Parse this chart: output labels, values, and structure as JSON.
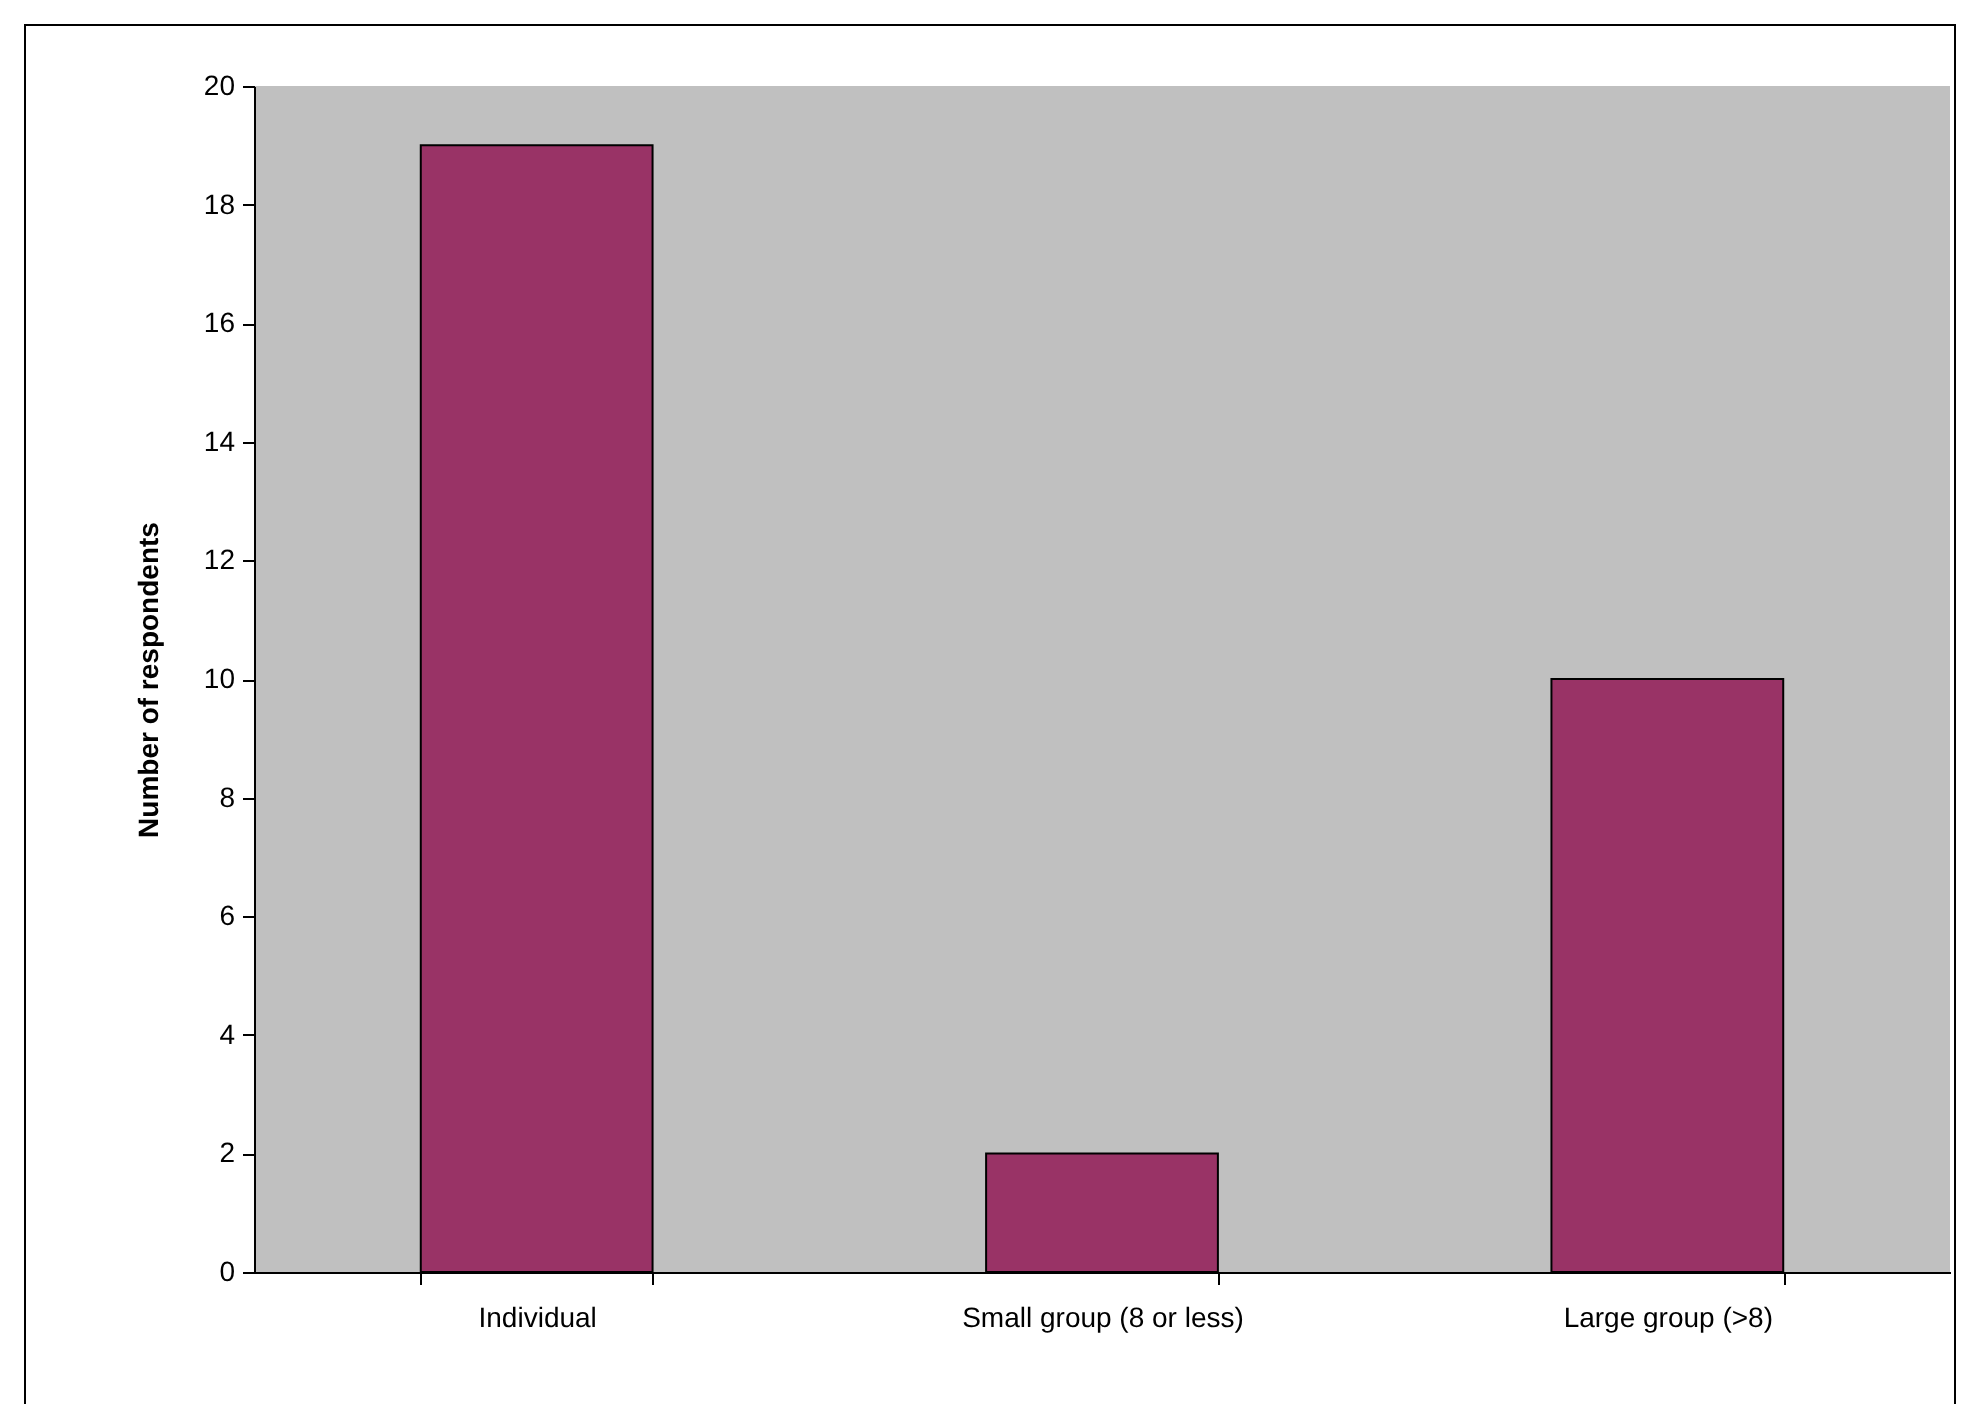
{
  "chart_data": {
    "type": "bar",
    "ylabel": "Number of respondents",
    "categories": [
      "Individual",
      "Small group (8 or less)",
      "Large group (>8)"
    ],
    "values": [
      19,
      2,
      10
    ],
    "color": "#993366",
    "ylim": [
      0,
      20
    ],
    "yticks": [
      0,
      2,
      4,
      6,
      8,
      10,
      12,
      14,
      16,
      18,
      20
    ],
    "grid": false
  }
}
